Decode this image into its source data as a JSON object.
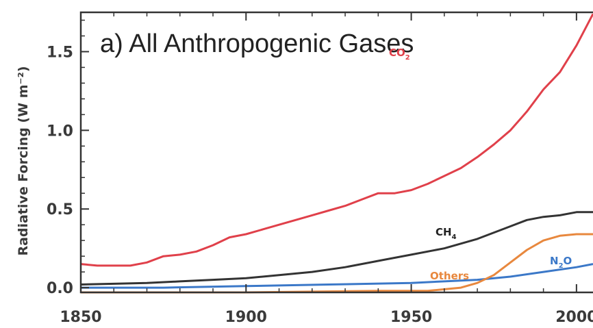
{
  "chart_data": {
    "type": "line",
    "title": "a) All Anthropogenic Gases",
    "xlabel": "",
    "ylabel": "Radiative Forcing (W m⁻²)",
    "xlim": [
      1850,
      2005
    ],
    "ylim": [
      -0.03,
      1.75
    ],
    "xticks": [
      1850,
      1900,
      1950,
      2000
    ],
    "yticks": [
      0.0,
      0.5,
      1.0,
      1.5
    ],
    "ytick_labels": [
      "0.0",
      "0.5",
      "1.0",
      "1.5"
    ],
    "grid": false,
    "series": [
      {
        "name": "CO₂",
        "color": "#e0404a",
        "x": [
          1850,
          1855,
          1860,
          1865,
          1870,
          1875,
          1880,
          1885,
          1890,
          1895,
          1900,
          1905,
          1910,
          1915,
          1920,
          1925,
          1930,
          1935,
          1940,
          1945,
          1950,
          1955,
          1960,
          1965,
          1970,
          1975,
          1980,
          1985,
          1990,
          1995,
          2000,
          2005
        ],
        "values": [
          0.15,
          0.14,
          0.14,
          0.14,
          0.16,
          0.2,
          0.21,
          0.23,
          0.27,
          0.32,
          0.34,
          0.37,
          0.4,
          0.43,
          0.46,
          0.49,
          0.52,
          0.56,
          0.6,
          0.6,
          0.62,
          0.66,
          0.71,
          0.76,
          0.83,
          0.91,
          1.0,
          1.12,
          1.26,
          1.37,
          1.54,
          1.74
        ]
      },
      {
        "name": "CH₄",
        "color": "#333333",
        "x": [
          1850,
          1860,
          1870,
          1880,
          1890,
          1900,
          1910,
          1920,
          1930,
          1940,
          1950,
          1960,
          1970,
          1980,
          1985,
          1990,
          1995,
          2000,
          2005
        ],
        "values": [
          0.02,
          0.025,
          0.03,
          0.04,
          0.05,
          0.06,
          0.08,
          0.1,
          0.13,
          0.17,
          0.21,
          0.25,
          0.31,
          0.39,
          0.43,
          0.45,
          0.46,
          0.48,
          0.48
        ]
      },
      {
        "name": "N₂O",
        "color": "#3b78c8",
        "x": [
          1850,
          1875,
          1900,
          1925,
          1950,
          1960,
          1970,
          1980,
          1990,
          2000,
          2005
        ],
        "values": [
          0.0,
          0.0,
          0.01,
          0.02,
          0.03,
          0.04,
          0.05,
          0.07,
          0.1,
          0.13,
          0.15
        ]
      },
      {
        "name": "Others",
        "color": "#e8883e",
        "x": [
          1850,
          1900,
          1940,
          1955,
          1965,
          1970,
          1975,
          1980,
          1985,
          1990,
          1995,
          2000,
          2005
        ],
        "values": [
          -0.03,
          -0.03,
          -0.02,
          -0.02,
          0.0,
          0.03,
          0.08,
          0.16,
          0.24,
          0.3,
          0.33,
          0.34,
          0.34
        ]
      }
    ]
  }
}
